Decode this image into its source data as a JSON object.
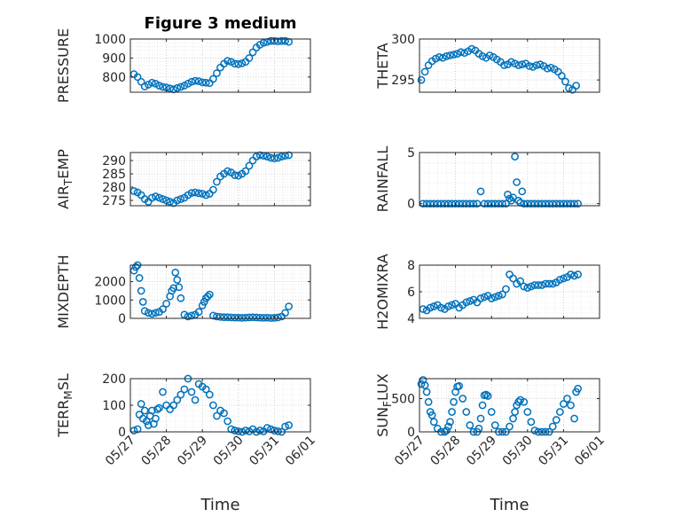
{
  "figure_title": "Figure 3 medium",
  "colors": {
    "marker": "#0072BD",
    "axis": "#262626"
  },
  "chart_data": [
    {
      "type": "scatter",
      "ylabel": "PRESSURE",
      "xlabel": "",
      "title": "Figure 3 medium",
      "x_ticks": [
        "05/27",
        "05/28",
        "05/29",
        "05/30",
        "05/31",
        "06/01"
      ],
      "xlim": [
        0,
        5
      ],
      "ylim": [
        720,
        1000
      ],
      "yticks": [
        800,
        900,
        1000
      ],
      "grid": true,
      "x": [
        0.1,
        0.2,
        0.3,
        0.4,
        0.5,
        0.6,
        0.7,
        0.8,
        0.9,
        1.0,
        1.1,
        1.2,
        1.3,
        1.4,
        1.5,
        1.6,
        1.7,
        1.8,
        1.9,
        2.0,
        2.1,
        2.2,
        2.3,
        2.4,
        2.5,
        2.6,
        2.7,
        2.8,
        2.9,
        3.0,
        3.1,
        3.2,
        3.3,
        3.4,
        3.5,
        3.6,
        3.7,
        3.8,
        3.9,
        4.0,
        4.1,
        4.2,
        4.3,
        4.4
      ],
      "y": [
        815,
        800,
        775,
        750,
        760,
        770,
        765,
        755,
        748,
        745,
        740,
        735,
        742,
        748,
        755,
        765,
        775,
        780,
        778,
        772,
        770,
        768,
        790,
        820,
        850,
        870,
        885,
        880,
        870,
        868,
        872,
        880,
        900,
        930,
        955,
        970,
        980,
        985,
        990,
        990,
        988,
        990,
        990,
        985
      ]
    },
    {
      "type": "scatter",
      "ylabel": "THETA",
      "xlabel": "",
      "x_ticks": [
        "05/27",
        "05/28",
        "05/29",
        "05/30",
        "05/31",
        "06/01"
      ],
      "xlim": [
        0,
        5
      ],
      "ylim": [
        293.5,
        300
      ],
      "yticks": [
        295,
        300
      ],
      "grid": true,
      "x": [
        0.05,
        0.15,
        0.25,
        0.35,
        0.45,
        0.55,
        0.65,
        0.75,
        0.85,
        0.95,
        1.05,
        1.15,
        1.25,
        1.35,
        1.45,
        1.55,
        1.65,
        1.75,
        1.85,
        1.95,
        2.05,
        2.15,
        2.25,
        2.35,
        2.45,
        2.55,
        2.65,
        2.75,
        2.85,
        2.95,
        3.05,
        3.15,
        3.25,
        3.35,
        3.45,
        3.55,
        3.65,
        3.75,
        3.85,
        3.95,
        4.05,
        4.15,
        4.25,
        4.35
      ],
      "y": [
        295,
        296,
        296.8,
        297.3,
        297.6,
        297.8,
        297.7,
        297.9,
        298,
        298.1,
        298.2,
        298.4,
        298.3,
        298.5,
        298.8,
        298.6,
        298.2,
        297.9,
        297.7,
        298,
        297.8,
        297.5,
        297.2,
        296.8,
        296.9,
        297.2,
        297,
        296.8,
        296.9,
        297,
        296.7,
        296.6,
        296.8,
        296.9,
        296.7,
        296.4,
        296.5,
        296.3,
        296,
        295.5,
        294.8,
        294,
        293.8,
        294.3
      ]
    },
    {
      "type": "scatter",
      "ylabel": "AIR_TEMP",
      "xlabel": "",
      "x_ticks": [
        "05/27",
        "05/28",
        "05/29",
        "05/30",
        "05/31",
        "06/01"
      ],
      "xlim": [
        0,
        5
      ],
      "ylim": [
        273,
        293
      ],
      "yticks": [
        275,
        280,
        285,
        290
      ],
      "grid": true,
      "x": [
        0.1,
        0.2,
        0.3,
        0.4,
        0.5,
        0.6,
        0.7,
        0.8,
        0.9,
        1.0,
        1.1,
        1.2,
        1.3,
        1.4,
        1.5,
        1.6,
        1.7,
        1.8,
        1.9,
        2.0,
        2.1,
        2.2,
        2.3,
        2.4,
        2.5,
        2.6,
        2.7,
        2.8,
        2.9,
        3.0,
        3.1,
        3.2,
        3.3,
        3.4,
        3.5,
        3.6,
        3.7,
        3.8,
        3.9,
        4.0,
        4.1,
        4.2,
        4.3,
        4.4
      ],
      "y": [
        278.5,
        278,
        277,
        275.5,
        274.5,
        276,
        276.5,
        276,
        275.5,
        275,
        274.5,
        274,
        275,
        275.5,
        276,
        277,
        277.8,
        278,
        277.7,
        277.5,
        277,
        277.5,
        279,
        282,
        284,
        285,
        286,
        285.5,
        284.5,
        284.3,
        285,
        286,
        288,
        290,
        291.5,
        292,
        291.8,
        291.5,
        291,
        290.8,
        291,
        291.5,
        291.8,
        292
      ]
    },
    {
      "type": "scatter",
      "ylabel": "RAINFALL",
      "xlabel": "",
      "x_ticks": [
        "05/27",
        "05/28",
        "05/29",
        "05/30",
        "05/31",
        "06/01"
      ],
      "xlim": [
        0,
        5
      ],
      "ylim": [
        -0.2,
        5
      ],
      "yticks": [
        0,
        5
      ],
      "grid": true,
      "x": [
        0.1,
        0.2,
        0.3,
        0.4,
        0.5,
        0.6,
        0.7,
        0.8,
        0.9,
        1.0,
        1.1,
        1.2,
        1.3,
        1.4,
        1.5,
        1.6,
        1.7,
        1.8,
        1.9,
        2.0,
        2.1,
        2.2,
        2.3,
        2.4,
        2.45,
        2.5,
        2.55,
        2.6,
        2.65,
        2.7,
        2.75,
        2.8,
        2.85,
        2.9,
        3.0,
        3.1,
        3.2,
        3.3,
        3.4,
        3.5,
        3.6,
        3.7,
        3.8,
        3.9,
        4.0,
        4.1,
        4.2,
        4.3,
        4.4
      ],
      "y": [
        0,
        0,
        0,
        0,
        0,
        0,
        0,
        0,
        0,
        0,
        0,
        0,
        0,
        0,
        0,
        0,
        1.2,
        0,
        0,
        0,
        0,
        0,
        0,
        0,
        0.9,
        0.5,
        0.3,
        0.6,
        4.6,
        2.1,
        0.3,
        0.1,
        1.2,
        0,
        0,
        0,
        0,
        0,
        0,
        0,
        0,
        0,
        0,
        0,
        0,
        0,
        0,
        0,
        0
      ]
    },
    {
      "type": "scatter",
      "ylabel": "MIXDEPTH",
      "xlabel": "",
      "x_ticks": [
        "05/27",
        "05/28",
        "05/29",
        "05/30",
        "05/31",
        "06/01"
      ],
      "xlim": [
        0,
        5
      ],
      "ylim": [
        0,
        2900
      ],
      "yticks": [
        0,
        1000,
        2000
      ],
      "grid": true,
      "x": [
        0.1,
        0.15,
        0.2,
        0.25,
        0.3,
        0.35,
        0.4,
        0.5,
        0.6,
        0.7,
        0.8,
        0.9,
        1.0,
        1.1,
        1.15,
        1.2,
        1.25,
        1.3,
        1.35,
        1.4,
        1.5,
        1.6,
        1.7,
        1.8,
        1.9,
        2.0,
        2.05,
        2.1,
        2.15,
        2.2,
        2.3,
        2.4,
        2.5,
        2.6,
        2.7,
        2.8,
        2.9,
        3.0,
        3.1,
        3.2,
        3.3,
        3.4,
        3.5,
        3.6,
        3.7,
        3.8,
        3.9,
        4.0,
        4.1,
        4.2,
        4.3,
        4.4
      ],
      "y": [
        2600,
        2800,
        2900,
        2200,
        1500,
        900,
        400,
        300,
        250,
        300,
        350,
        500,
        800,
        1200,
        1500,
        1650,
        2500,
        2100,
        1700,
        1100,
        200,
        100,
        150,
        200,
        350,
        700,
        900,
        1100,
        1200,
        1300,
        150,
        100,
        80,
        60,
        60,
        50,
        40,
        40,
        30,
        40,
        50,
        60,
        50,
        40,
        30,
        40,
        20,
        30,
        50,
        100,
        300,
        650
      ]
    },
    {
      "type": "scatter",
      "ylabel": "H2OMIXRA",
      "xlabel": "",
      "x_ticks": [
        "05/27",
        "05/28",
        "05/29",
        "05/30",
        "05/31",
        "06/01"
      ],
      "xlim": [
        0,
        5
      ],
      "ylim": [
        4,
        8
      ],
      "yticks": [
        4,
        6,
        8
      ],
      "grid": true,
      "x": [
        0.1,
        0.2,
        0.3,
        0.4,
        0.5,
        0.6,
        0.7,
        0.8,
        0.9,
        1.0,
        1.1,
        1.2,
        1.3,
        1.4,
        1.5,
        1.6,
        1.7,
        1.8,
        1.9,
        2.0,
        2.1,
        2.2,
        2.3,
        2.4,
        2.5,
        2.6,
        2.7,
        2.8,
        2.9,
        3.0,
        3.1,
        3.2,
        3.3,
        3.4,
        3.5,
        3.6,
        3.7,
        3.8,
        3.9,
        4.0,
        4.1,
        4.2,
        4.3,
        4.4
      ],
      "y": [
        4.7,
        4.6,
        4.8,
        4.9,
        5.0,
        4.8,
        4.7,
        4.9,
        5.0,
        5.1,
        4.8,
        5.0,
        5.2,
        5.3,
        5.4,
        5.2,
        5.5,
        5.6,
        5.7,
        5.5,
        5.6,
        5.7,
        5.8,
        6.2,
        7.3,
        7.0,
        6.6,
        6.8,
        6.4,
        6.3,
        6.4,
        6.5,
        6.5,
        6.5,
        6.6,
        6.6,
        6.6,
        6.7,
        6.9,
        7.0,
        7.1,
        7.3,
        7.2,
        7.3
      ]
    },
    {
      "type": "scatter",
      "ylabel": "TERR_MSL",
      "xlabel": "Time",
      "x_ticks": [
        "05/27",
        "05/28",
        "05/29",
        "05/30",
        "05/31",
        "06/01"
      ],
      "xlim": [
        0,
        5
      ],
      "ylim": [
        0,
        200
      ],
      "yticks": [
        0,
        100,
        200
      ],
      "grid": true,
      "x": [
        0.1,
        0.2,
        0.25,
        0.3,
        0.35,
        0.4,
        0.45,
        0.5,
        0.55,
        0.6,
        0.65,
        0.7,
        0.75,
        0.8,
        0.9,
        1.0,
        1.1,
        1.2,
        1.3,
        1.4,
        1.5,
        1.6,
        1.7,
        1.8,
        1.9,
        2.0,
        2.1,
        2.2,
        2.3,
        2.4,
        2.5,
        2.6,
        2.7,
        2.8,
        2.9,
        3.0,
        3.1,
        3.2,
        3.3,
        3.4,
        3.5,
        3.6,
        3.7,
        3.8,
        3.9,
        4.0,
        4.1,
        4.2,
        4.3,
        4.4
      ],
      "y": [
        5,
        10,
        65,
        105,
        50,
        80,
        40,
        25,
        60,
        80,
        30,
        50,
        85,
        90,
        150,
        100,
        85,
        100,
        120,
        140,
        160,
        200,
        150,
        120,
        180,
        170,
        160,
        140,
        100,
        60,
        80,
        70,
        40,
        10,
        5,
        2,
        0,
        5,
        2,
        10,
        0,
        5,
        2,
        15,
        10,
        5,
        2,
        0,
        20,
        25
      ]
    },
    {
      "type": "scatter",
      "ylabel": "SUN_FLUX",
      "xlabel": "Time",
      "x_ticks": [
        "05/27",
        "05/28",
        "05/29",
        "05/30",
        "05/31",
        "06/01"
      ],
      "xlim": [
        0,
        5
      ],
      "ylim": [
        0,
        800
      ],
      "yticks": [
        0,
        500
      ],
      "grid": true,
      "x": [
        0.05,
        0.1,
        0.15,
        0.2,
        0.25,
        0.3,
        0.35,
        0.4,
        0.5,
        0.6,
        0.7,
        0.75,
        0.8,
        0.85,
        0.9,
        0.95,
        1.0,
        1.05,
        1.1,
        1.2,
        1.3,
        1.4,
        1.5,
        1.6,
        1.65,
        1.7,
        1.75,
        1.8,
        1.85,
        1.9,
        2.0,
        2.1,
        2.2,
        2.3,
        2.4,
        2.5,
        2.6,
        2.65,
        2.7,
        2.75,
        2.8,
        2.9,
        3.0,
        3.1,
        3.2,
        3.3,
        3.4,
        3.5,
        3.6,
        3.7,
        3.8,
        3.9,
        4.0,
        4.1,
        4.2,
        4.3,
        4.35,
        4.4
      ],
      "y": [
        720,
        780,
        700,
        600,
        450,
        300,
        250,
        150,
        50,
        0,
        0,
        20,
        80,
        150,
        300,
        450,
        600,
        680,
        690,
        500,
        300,
        100,
        0,
        0,
        50,
        200,
        400,
        550,
        560,
        540,
        300,
        100,
        0,
        0,
        0,
        80,
        200,
        300,
        400,
        450,
        480,
        450,
        300,
        150,
        20,
        0,
        0,
        0,
        0,
        80,
        180,
        300,
        420,
        500,
        400,
        200,
        600,
        650
      ]
    }
  ]
}
